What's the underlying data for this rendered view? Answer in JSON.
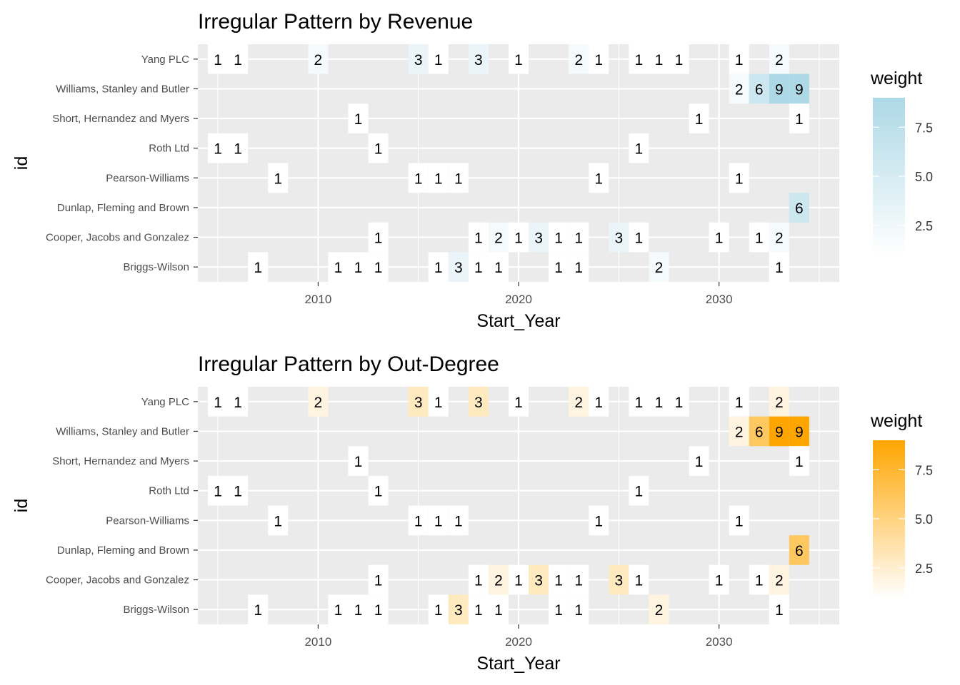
{
  "chart_data": [
    {
      "type": "heatmap",
      "title": "Irregular Pattern by Revenue",
      "xlabel": "Start_Year",
      "ylabel": "id",
      "xlim": [
        2004,
        2036
      ],
      "x_ticks": [
        2010,
        2020,
        2030
      ],
      "categories": [
        "Briggs-Wilson",
        "Cooper, Jacobs and Gonzalez",
        "Dunlap, Fleming and Brown",
        "Pearson-Williams",
        "Roth Ltd",
        "Short, Hernandez and Myers",
        "Williams, Stanley and Butler",
        "Yang PLC"
      ],
      "legend": {
        "title": "weight",
        "position": "right",
        "range": [
          1,
          9
        ],
        "ticks": [
          2.5,
          5.0,
          7.5
        ],
        "tick_labels": [
          "2.5",
          "5.0",
          "7.5"
        ],
        "low_color": "#ffffff",
        "high_color": "#add8e6"
      },
      "points": [
        {
          "y": "Yang PLC",
          "x": 2005,
          "weight": 1
        },
        {
          "y": "Yang PLC",
          "x": 2006,
          "weight": 1
        },
        {
          "y": "Yang PLC",
          "x": 2010,
          "weight": 2
        },
        {
          "y": "Yang PLC",
          "x": 2015,
          "weight": 3
        },
        {
          "y": "Yang PLC",
          "x": 2016,
          "weight": 1
        },
        {
          "y": "Yang PLC",
          "x": 2018,
          "weight": 3
        },
        {
          "y": "Yang PLC",
          "x": 2020,
          "weight": 1
        },
        {
          "y": "Yang PLC",
          "x": 2023,
          "weight": 2
        },
        {
          "y": "Yang PLC",
          "x": 2024,
          "weight": 1
        },
        {
          "y": "Yang PLC",
          "x": 2026,
          "weight": 1
        },
        {
          "y": "Yang PLC",
          "x": 2027,
          "weight": 1
        },
        {
          "y": "Yang PLC",
          "x": 2028,
          "weight": 1
        },
        {
          "y": "Yang PLC",
          "x": 2031,
          "weight": 1
        },
        {
          "y": "Yang PLC",
          "x": 2033,
          "weight": 2
        },
        {
          "y": "Williams, Stanley and Butler",
          "x": 2031,
          "weight": 2
        },
        {
          "y": "Williams, Stanley and Butler",
          "x": 2032,
          "weight": 6
        },
        {
          "y": "Williams, Stanley and Butler",
          "x": 2033,
          "weight": 9
        },
        {
          "y": "Williams, Stanley and Butler",
          "x": 2034,
          "weight": 9
        },
        {
          "y": "Short, Hernandez and Myers",
          "x": 2012,
          "weight": 1
        },
        {
          "y": "Short, Hernandez and Myers",
          "x": 2029,
          "weight": 1
        },
        {
          "y": "Short, Hernandez and Myers",
          "x": 2034,
          "weight": 1
        },
        {
          "y": "Roth Ltd",
          "x": 2005,
          "weight": 1
        },
        {
          "y": "Roth Ltd",
          "x": 2006,
          "weight": 1
        },
        {
          "y": "Roth Ltd",
          "x": 2013,
          "weight": 1
        },
        {
          "y": "Roth Ltd",
          "x": 2026,
          "weight": 1
        },
        {
          "y": "Pearson-Williams",
          "x": 2008,
          "weight": 1
        },
        {
          "y": "Pearson-Williams",
          "x": 2015,
          "weight": 1
        },
        {
          "y": "Pearson-Williams",
          "x": 2016,
          "weight": 1
        },
        {
          "y": "Pearson-Williams",
          "x": 2017,
          "weight": 1
        },
        {
          "y": "Pearson-Williams",
          "x": 2024,
          "weight": 1
        },
        {
          "y": "Pearson-Williams",
          "x": 2031,
          "weight": 1
        },
        {
          "y": "Dunlap, Fleming and Brown",
          "x": 2034,
          "weight": 6
        },
        {
          "y": "Cooper, Jacobs and Gonzalez",
          "x": 2013,
          "weight": 1
        },
        {
          "y": "Cooper, Jacobs and Gonzalez",
          "x": 2018,
          "weight": 1
        },
        {
          "y": "Cooper, Jacobs and Gonzalez",
          "x": 2019,
          "weight": 2
        },
        {
          "y": "Cooper, Jacobs and Gonzalez",
          "x": 2020,
          "weight": 1
        },
        {
          "y": "Cooper, Jacobs and Gonzalez",
          "x": 2021,
          "weight": 3
        },
        {
          "y": "Cooper, Jacobs and Gonzalez",
          "x": 2022,
          "weight": 1
        },
        {
          "y": "Cooper, Jacobs and Gonzalez",
          "x": 2023,
          "weight": 1
        },
        {
          "y": "Cooper, Jacobs and Gonzalez",
          "x": 2025,
          "weight": 3
        },
        {
          "y": "Cooper, Jacobs and Gonzalez",
          "x": 2026,
          "weight": 1
        },
        {
          "y": "Cooper, Jacobs and Gonzalez",
          "x": 2030,
          "weight": 1
        },
        {
          "y": "Cooper, Jacobs and Gonzalez",
          "x": 2032,
          "weight": 1
        },
        {
          "y": "Cooper, Jacobs and Gonzalez",
          "x": 2033,
          "weight": 2
        },
        {
          "y": "Briggs-Wilson",
          "x": 2007,
          "weight": 1
        },
        {
          "y": "Briggs-Wilson",
          "x": 2011,
          "weight": 1
        },
        {
          "y": "Briggs-Wilson",
          "x": 2012,
          "weight": 1
        },
        {
          "y": "Briggs-Wilson",
          "x": 2013,
          "weight": 1
        },
        {
          "y": "Briggs-Wilson",
          "x": 2016,
          "weight": 1
        },
        {
          "y": "Briggs-Wilson",
          "x": 2017,
          "weight": 3
        },
        {
          "y": "Briggs-Wilson",
          "x": 2018,
          "weight": 1
        },
        {
          "y": "Briggs-Wilson",
          "x": 2019,
          "weight": 1
        },
        {
          "y": "Briggs-Wilson",
          "x": 2022,
          "weight": 1
        },
        {
          "y": "Briggs-Wilson",
          "x": 2023,
          "weight": 1
        },
        {
          "y": "Briggs-Wilson",
          "x": 2027,
          "weight": 2
        },
        {
          "y": "Briggs-Wilson",
          "x": 2033,
          "weight": 1
        }
      ]
    },
    {
      "type": "heatmap",
      "title": "Irregular Pattern by Out-Degree",
      "xlabel": "Start_Year",
      "ylabel": "id",
      "xlim": [
        2004,
        2036
      ],
      "x_ticks": [
        2010,
        2020,
        2030
      ],
      "categories": [
        "Briggs-Wilson",
        "Cooper, Jacobs and Gonzalez",
        "Dunlap, Fleming and Brown",
        "Pearson-Williams",
        "Roth Ltd",
        "Short, Hernandez and Myers",
        "Williams, Stanley and Butler",
        "Yang PLC"
      ],
      "legend": {
        "title": "weight",
        "position": "right",
        "range": [
          1,
          9
        ],
        "ticks": [
          2.5,
          5.0,
          7.5
        ],
        "tick_labels": [
          "2.5",
          "5.0",
          "7.5"
        ],
        "low_color": "#ffffff",
        "high_color": "#ffa500"
      },
      "points": [
        {
          "y": "Yang PLC",
          "x": 2005,
          "weight": 1
        },
        {
          "y": "Yang PLC",
          "x": 2006,
          "weight": 1
        },
        {
          "y": "Yang PLC",
          "x": 2010,
          "weight": 2
        },
        {
          "y": "Yang PLC",
          "x": 2015,
          "weight": 3
        },
        {
          "y": "Yang PLC",
          "x": 2016,
          "weight": 1
        },
        {
          "y": "Yang PLC",
          "x": 2018,
          "weight": 3
        },
        {
          "y": "Yang PLC",
          "x": 2020,
          "weight": 1
        },
        {
          "y": "Yang PLC",
          "x": 2023,
          "weight": 2
        },
        {
          "y": "Yang PLC",
          "x": 2024,
          "weight": 1
        },
        {
          "y": "Yang PLC",
          "x": 2026,
          "weight": 1
        },
        {
          "y": "Yang PLC",
          "x": 2027,
          "weight": 1
        },
        {
          "y": "Yang PLC",
          "x": 2028,
          "weight": 1
        },
        {
          "y": "Yang PLC",
          "x": 2031,
          "weight": 1
        },
        {
          "y": "Yang PLC",
          "x": 2033,
          "weight": 2
        },
        {
          "y": "Williams, Stanley and Butler",
          "x": 2031,
          "weight": 2
        },
        {
          "y": "Williams, Stanley and Butler",
          "x": 2032,
          "weight": 6
        },
        {
          "y": "Williams, Stanley and Butler",
          "x": 2033,
          "weight": 9
        },
        {
          "y": "Williams, Stanley and Butler",
          "x": 2034,
          "weight": 9
        },
        {
          "y": "Short, Hernandez and Myers",
          "x": 2012,
          "weight": 1
        },
        {
          "y": "Short, Hernandez and Myers",
          "x": 2029,
          "weight": 1
        },
        {
          "y": "Short, Hernandez and Myers",
          "x": 2034,
          "weight": 1
        },
        {
          "y": "Roth Ltd",
          "x": 2005,
          "weight": 1
        },
        {
          "y": "Roth Ltd",
          "x": 2006,
          "weight": 1
        },
        {
          "y": "Roth Ltd",
          "x": 2013,
          "weight": 1
        },
        {
          "y": "Roth Ltd",
          "x": 2026,
          "weight": 1
        },
        {
          "y": "Pearson-Williams",
          "x": 2008,
          "weight": 1
        },
        {
          "y": "Pearson-Williams",
          "x": 2015,
          "weight": 1
        },
        {
          "y": "Pearson-Williams",
          "x": 2016,
          "weight": 1
        },
        {
          "y": "Pearson-Williams",
          "x": 2017,
          "weight": 1
        },
        {
          "y": "Pearson-Williams",
          "x": 2024,
          "weight": 1
        },
        {
          "y": "Pearson-Williams",
          "x": 2031,
          "weight": 1
        },
        {
          "y": "Dunlap, Fleming and Brown",
          "x": 2034,
          "weight": 6
        },
        {
          "y": "Cooper, Jacobs and Gonzalez",
          "x": 2013,
          "weight": 1
        },
        {
          "y": "Cooper, Jacobs and Gonzalez",
          "x": 2018,
          "weight": 1
        },
        {
          "y": "Cooper, Jacobs and Gonzalez",
          "x": 2019,
          "weight": 2
        },
        {
          "y": "Cooper, Jacobs and Gonzalez",
          "x": 2020,
          "weight": 1
        },
        {
          "y": "Cooper, Jacobs and Gonzalez",
          "x": 2021,
          "weight": 3
        },
        {
          "y": "Cooper, Jacobs and Gonzalez",
          "x": 2022,
          "weight": 1
        },
        {
          "y": "Cooper, Jacobs and Gonzalez",
          "x": 2023,
          "weight": 1
        },
        {
          "y": "Cooper, Jacobs and Gonzalez",
          "x": 2025,
          "weight": 3
        },
        {
          "y": "Cooper, Jacobs and Gonzalez",
          "x": 2026,
          "weight": 1
        },
        {
          "y": "Cooper, Jacobs and Gonzalez",
          "x": 2030,
          "weight": 1
        },
        {
          "y": "Cooper, Jacobs and Gonzalez",
          "x": 2032,
          "weight": 1
        },
        {
          "y": "Cooper, Jacobs and Gonzalez",
          "x": 2033,
          "weight": 2
        },
        {
          "y": "Briggs-Wilson",
          "x": 2007,
          "weight": 1
        },
        {
          "y": "Briggs-Wilson",
          "x": 2011,
          "weight": 1
        },
        {
          "y": "Briggs-Wilson",
          "x": 2012,
          "weight": 1
        },
        {
          "y": "Briggs-Wilson",
          "x": 2013,
          "weight": 1
        },
        {
          "y": "Briggs-Wilson",
          "x": 2016,
          "weight": 1
        },
        {
          "y": "Briggs-Wilson",
          "x": 2017,
          "weight": 3
        },
        {
          "y": "Briggs-Wilson",
          "x": 2018,
          "weight": 1
        },
        {
          "y": "Briggs-Wilson",
          "x": 2019,
          "weight": 1
        },
        {
          "y": "Briggs-Wilson",
          "x": 2022,
          "weight": 1
        },
        {
          "y": "Briggs-Wilson",
          "x": 2023,
          "weight": 1
        },
        {
          "y": "Briggs-Wilson",
          "x": 2027,
          "weight": 2
        },
        {
          "y": "Briggs-Wilson",
          "x": 2033,
          "weight": 1
        }
      ]
    }
  ]
}
